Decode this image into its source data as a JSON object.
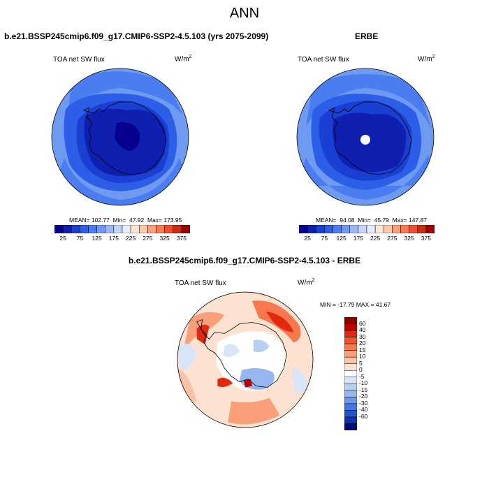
{
  "page": {
    "title": "ANN"
  },
  "panels": [
    {
      "id": "model",
      "title": "b.e21.BSSP245cmip6.f09_g17.CMIP6-SSP2-4.5.103 (yrs 2075-2099)",
      "variable": "TOA net SW flux",
      "units_base": "W/m",
      "units_exp": "2",
      "stats": {
        "mean": "102.77",
        "min": "47.92",
        "max": "173.95"
      }
    },
    {
      "id": "obs",
      "title": "ERBE",
      "variable": "TOA net SW flux",
      "units_base": "W/m",
      "units_exp": "2",
      "stats": {
        "mean": "94.08",
        "min": "45.79",
        "max": "147.87"
      }
    },
    {
      "id": "diff",
      "title": "b.e21.BSSP245cmip6.f09_g17.CMIP6-SSP2-4.5.103 - ERBE",
      "variable": "TOA net SW flux",
      "units_base": "W/m",
      "units_exp": "2",
      "stats_text": "MIN = -17.79 MAX =  41.67"
    }
  ],
  "colorbars": {
    "absolute": {
      "colors": [
        "#08008e",
        "#0f1fb0",
        "#1a3fd3",
        "#2c5ee8",
        "#4a7ef0",
        "#6f9af2",
        "#9ab8f5",
        "#c4d6f8",
        "#e6eefc",
        "#fde6d6",
        "#fbc8aa",
        "#f8a27c",
        "#f27c55",
        "#e8502f",
        "#c82c12",
        "#950600"
      ],
      "tick_labels": [
        "25",
        "75",
        "125",
        "175",
        "225",
        "275",
        "325",
        "375"
      ]
    },
    "difference": {
      "colors": [
        "#8d0000",
        "#c00000",
        "#e02a10",
        "#f2522e",
        "#f7784f",
        "#f9a07a",
        "#fbc3a5",
        "#fde2d2",
        "#ffffff",
        "#d8e5f7",
        "#b8cff2",
        "#95b7ed",
        "#6f99e6",
        "#4677dc",
        "#2352cc",
        "#1030b0",
        "#020a80"
      ],
      "tick_labels": [
        "60",
        "40",
        "30",
        "20",
        "15",
        "10",
        "5",
        "0",
        "-5",
        "-10",
        "-15",
        "-20",
        "-30",
        "-40",
        "-60"
      ]
    }
  },
  "chart_data": [
    {
      "type": "heatmap",
      "projection": "south polar stereographic",
      "title": "b.e21.BSSP245cmip6.f09_g17.CMIP6-SSP2-4.5.103 (yrs 2075-2099)",
      "variable": "TOA net SW flux",
      "units": "W/m2",
      "mean": 102.77,
      "min": 47.92,
      "max": 173.95,
      "levels": [
        25,
        50,
        75,
        100,
        125,
        150,
        175,
        200,
        225,
        250,
        275,
        300,
        325,
        350,
        375
      ]
    },
    {
      "type": "heatmap",
      "projection": "south polar stereographic",
      "title": "ERBE",
      "variable": "TOA net SW flux",
      "units": "W/m2",
      "mean": 94.08,
      "min": 45.79,
      "max": 147.87,
      "levels": [
        25,
        50,
        75,
        100,
        125,
        150,
        175,
        200,
        225,
        250,
        275,
        300,
        325,
        350,
        375
      ]
    },
    {
      "type": "heatmap",
      "projection": "south polar stereographic",
      "title": "b.e21.BSSP245cmip6.f09_g17.CMIP6-SSP2-4.5.103 - ERBE",
      "variable": "TOA net SW flux",
      "units": "W/m2",
      "min": -17.79,
      "max": 41.67,
      "levels": [
        -60,
        -40,
        -30,
        -20,
        -15,
        -10,
        -5,
        0,
        5,
        10,
        15,
        20,
        30,
        40,
        60
      ]
    }
  ]
}
